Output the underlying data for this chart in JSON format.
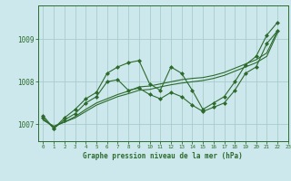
{
  "xlabel": "Graphe pression niveau de la mer (hPa)",
  "xlim": [
    -0.5,
    23
  ],
  "ylim": [
    1006.6,
    1009.8
  ],
  "yticks": [
    1007,
    1008,
    1009
  ],
  "xticks": [
    0,
    1,
    2,
    3,
    4,
    5,
    6,
    7,
    8,
    9,
    10,
    11,
    12,
    13,
    14,
    15,
    16,
    17,
    18,
    19,
    20,
    21,
    22,
    23
  ],
  "background_color": "#cce8ec",
  "grid_color": "#aacccc",
  "line_color": "#2d6b2d",
  "series1_x": [
    0,
    1,
    2,
    3,
    4,
    5,
    6,
    7,
    8,
    9,
    10,
    11,
    12,
    13,
    14,
    15,
    16,
    17,
    18,
    19,
    20,
    21,
    22
  ],
  "series1_y": [
    1007.2,
    1006.9,
    1007.15,
    1007.35,
    1007.6,
    1007.75,
    1008.2,
    1008.35,
    1008.45,
    1008.5,
    1007.95,
    1007.8,
    1008.35,
    1008.2,
    1007.8,
    1007.35,
    1007.5,
    1007.65,
    1008.0,
    1008.4,
    1008.6,
    1009.1,
    1009.4
  ],
  "series2_x": [
    0,
    1,
    2,
    3,
    4,
    5,
    6,
    7,
    8,
    9,
    10,
    11,
    12,
    13,
    14,
    15,
    16,
    17,
    18,
    19,
    20,
    21,
    22
  ],
  "series2_y": [
    1007.15,
    1006.9,
    1007.1,
    1007.25,
    1007.5,
    1007.65,
    1008.0,
    1008.05,
    1007.8,
    1007.85,
    1007.7,
    1007.6,
    1007.75,
    1007.65,
    1007.45,
    1007.3,
    1007.4,
    1007.5,
    1007.8,
    1008.2,
    1008.35,
    1008.9,
    1009.2
  ],
  "series3_x": [
    0,
    1,
    2,
    3,
    4,
    5,
    6,
    7,
    8,
    9,
    10,
    11,
    12,
    13,
    14,
    15,
    16,
    17,
    18,
    19,
    20,
    21,
    22
  ],
  "series3_y": [
    1007.1,
    1006.95,
    1007.05,
    1007.15,
    1007.3,
    1007.45,
    1007.55,
    1007.65,
    1007.72,
    1007.8,
    1007.82,
    1007.88,
    1007.93,
    1007.97,
    1008.0,
    1008.03,
    1008.08,
    1008.15,
    1008.25,
    1008.35,
    1008.45,
    1008.6,
    1009.15
  ],
  "series4_x": [
    0,
    1,
    2,
    3,
    4,
    5,
    6,
    7,
    8,
    9,
    10,
    11,
    12,
    13,
    14,
    15,
    16,
    17,
    18,
    19,
    20,
    21,
    22
  ],
  "series4_y": [
    1007.1,
    1006.95,
    1007.05,
    1007.18,
    1007.35,
    1007.5,
    1007.6,
    1007.7,
    1007.78,
    1007.88,
    1007.9,
    1007.95,
    1008.0,
    1008.05,
    1008.08,
    1008.1,
    1008.15,
    1008.22,
    1008.32,
    1008.42,
    1008.52,
    1008.68,
    1009.2
  ]
}
